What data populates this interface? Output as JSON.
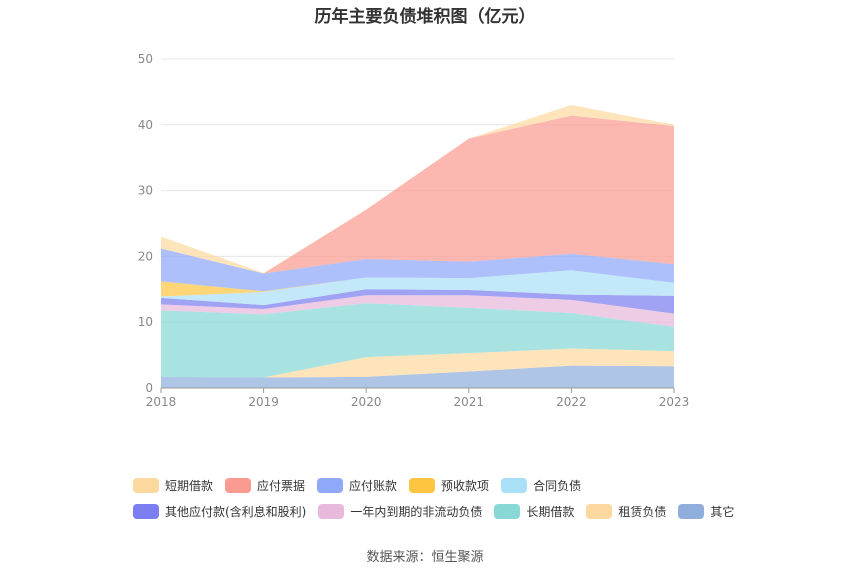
{
  "title": "历年主要负债堆积图（亿元）",
  "source": "数据来源：恒生聚源",
  "colors": [
    "#fdd9a0",
    "#f99b91",
    "#8fa8fa",
    "#fdc542",
    "#aadff8",
    "#7b7ef0",
    "#e9b9dc",
    "#88d8d6",
    "#fdd9a0",
    "#90aedc"
  ],
  "chart_data": {
    "type": "area",
    "stacked": true,
    "x": [
      "2018",
      "2019",
      "2020",
      "2021",
      "2022",
      "2023"
    ],
    "ylim": [
      0,
      50
    ],
    "yticks": [
      0,
      10,
      20,
      30,
      40,
      50
    ],
    "grid": true,
    "legend_position": "bottom",
    "stack_order_bottom_to_top": [
      "其它",
      "租赁负债",
      "长期借款",
      "一年内到期的非流动负债",
      "其他应付款(含利息和股利)",
      "合同负债",
      "预收款项",
      "应付账款",
      "应付票据",
      "短期借款"
    ],
    "series": [
      {
        "name": "短期借款",
        "values": [
          1.8,
          0.1,
          0,
          0,
          1.6,
          0.2
        ]
      },
      {
        "name": "应付票据",
        "values": [
          0,
          0,
          7.5,
          18.7,
          21.0,
          21.0
        ]
      },
      {
        "name": "应付账款",
        "values": [
          5.0,
          2.7,
          2.8,
          2.5,
          2.5,
          2.8
        ]
      },
      {
        "name": "预收款项",
        "values": [
          2.3,
          0.1,
          0,
          0,
          0,
          0
        ]
      },
      {
        "name": "合同负债",
        "values": [
          0.2,
          2.0,
          1.8,
          1.8,
          3.7,
          2.0
        ]
      },
      {
        "name": "其他应付款(含利息和股利)",
        "values": [
          1.0,
          0.6,
          0.9,
          0.8,
          0.8,
          2.7
        ]
      },
      {
        "name": "一年内到期的非流动负债",
        "values": [
          0.9,
          0.8,
          1.2,
          1.9,
          2.0,
          2.0
        ]
      },
      {
        "name": "长期借款",
        "values": [
          10.1,
          9.6,
          8.2,
          6.9,
          5.4,
          3.7
        ]
      },
      {
        "name": "租赁负债",
        "values": [
          0,
          0,
          3.0,
          2.8,
          2.6,
          2.3
        ]
      },
      {
        "name": "其它",
        "values": [
          1.7,
          1.6,
          1.7,
          2.5,
          3.4,
          3.3
        ]
      }
    ]
  }
}
